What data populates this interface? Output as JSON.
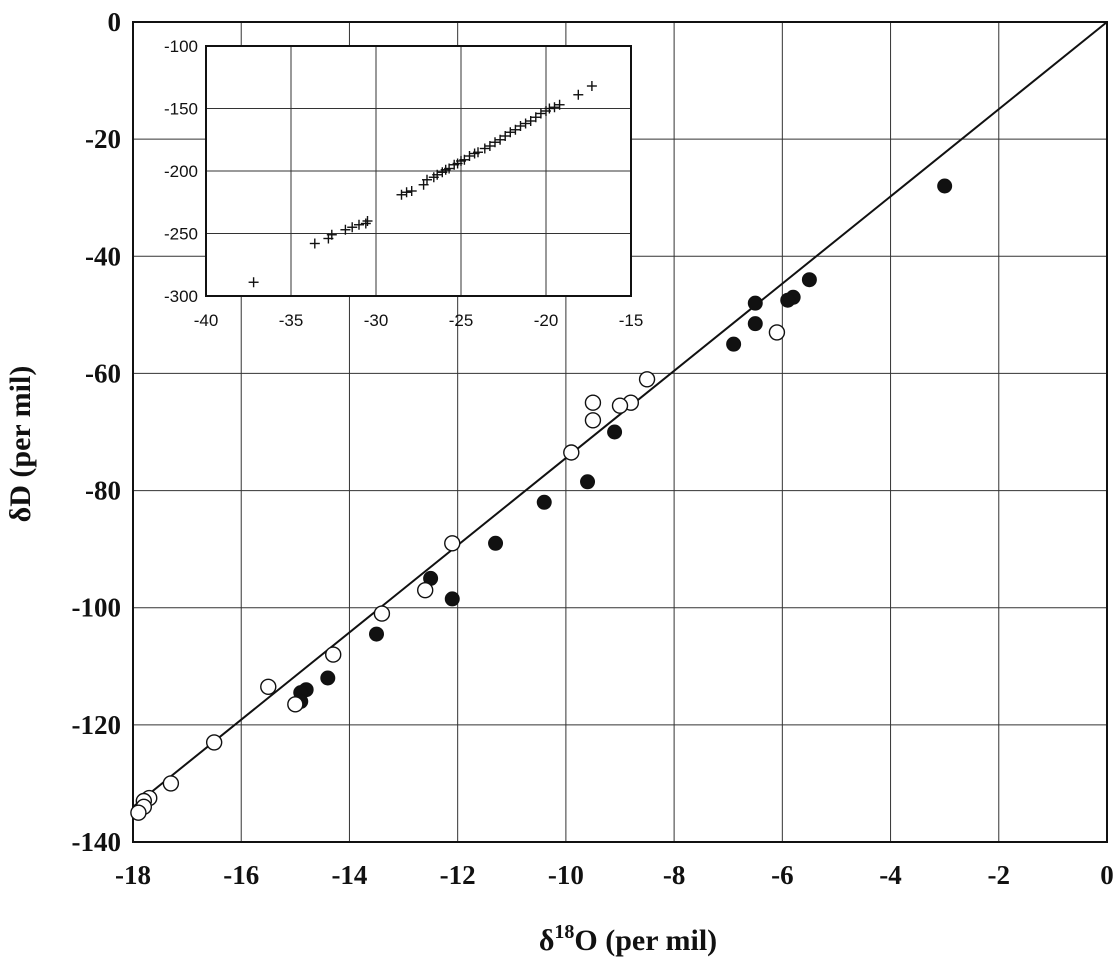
{
  "chart_data": [
    {
      "type": "scatter",
      "title": "",
      "xlabel": "δ18O (per mil)",
      "xlabel_parts": {
        "base": "δ",
        "sup": "18",
        "rest": "O (per mil)"
      },
      "ylabel": "δD (per mil)",
      "xlim": [
        -18,
        0
      ],
      "ylim": [
        -140,
        0
      ],
      "x_ticks": [
        "-18",
        "-16",
        "-14",
        "-12",
        "-10",
        "-8",
        "-6",
        "-4",
        "-2",
        "0"
      ],
      "y_ticks": [
        "0",
        "-20",
        "-40",
        "-60",
        "-80",
        "-100",
        "-120",
        "-140"
      ],
      "grid": true,
      "line": {
        "x": [
          -18,
          0
        ],
        "y": [
          -134,
          0
        ]
      },
      "series": [
        {
          "marker": "filled-circle",
          "x": [
            -3.0,
            -5.5,
            -5.8,
            -5.9,
            -6.5,
            -6.5,
            -6.9,
            -9.1,
            -9.6,
            -10.4,
            -11.3,
            -12.1,
            -12.5,
            -13.5,
            -14.4,
            -14.8,
            -14.9,
            -14.9
          ],
          "y": [
            -28,
            -44,
            -47,
            -47.5,
            -48,
            -51.5,
            -55,
            -70,
            -78.5,
            -82,
            -89,
            -98.5,
            -95,
            -104.5,
            -112,
            -114,
            -114.5,
            -116
          ]
        },
        {
          "marker": "open-circle",
          "x": [
            -6.1,
            -8.5,
            -8.8,
            -9.0,
            -9.5,
            -9.5,
            -9.9,
            -12.1,
            -12.6,
            -13.4,
            -14.3,
            -15.0,
            -15.5,
            -16.5,
            -17.3,
            -17.7,
            -17.8,
            -17.8,
            -17.9
          ],
          "y": [
            -53,
            -61,
            -65,
            -65.5,
            -65,
            -68,
            -73.5,
            -89,
            -97,
            -101,
            -108,
            -116.5,
            -113.5,
            -123,
            -130,
            -132.5,
            -133,
            -134,
            -135
          ]
        }
      ]
    },
    {
      "type": "scatter",
      "title": "",
      "xlabel": "",
      "ylabel": "",
      "xlim": [
        -40,
        -15
      ],
      "ylim": [
        -300,
        -100
      ],
      "x_ticks": [
        "-40",
        "-35",
        "-30",
        "-25",
        "-20",
        "-15"
      ],
      "y_ticks": [
        "-100",
        "-150",
        "-200",
        "-250",
        "-300"
      ],
      "grid": true,
      "series": [
        {
          "marker": "plus",
          "x": [
            -37.2,
            -33.6,
            -32.8,
            -32.6,
            -31.8,
            -31.4,
            -31.0,
            -30.6,
            -30.5,
            -28.5,
            -28.2,
            -27.9,
            -27.2,
            -27.0,
            -26.6,
            -26.4,
            -26.1,
            -25.9,
            -25.7,
            -25.4,
            -25.2,
            -25.0,
            -24.8,
            -24.5,
            -24.2,
            -24.0,
            -23.6,
            -23.3,
            -23.0,
            -22.7,
            -22.4,
            -22.1,
            -21.8,
            -21.5,
            -21.2,
            -20.9,
            -20.6,
            -20.3,
            -20.0,
            -19.8,
            -19.5,
            -19.2,
            -18.1,
            -17.3
          ],
          "y": [
            -289,
            -258,
            -254,
            -251,
            -247,
            -245,
            -243,
            -242,
            -240,
            -219,
            -217,
            -216,
            -211,
            -207,
            -205,
            -203,
            -201,
            -199,
            -198,
            -195,
            -194,
            -192,
            -191,
            -188,
            -186,
            -185,
            -182,
            -180,
            -177,
            -175,
            -172,
            -169,
            -167,
            -164,
            -162,
            -160,
            -157,
            -154,
            -152,
            -150,
            -149,
            -147,
            -139,
            -132
          ]
        }
      ]
    }
  ]
}
